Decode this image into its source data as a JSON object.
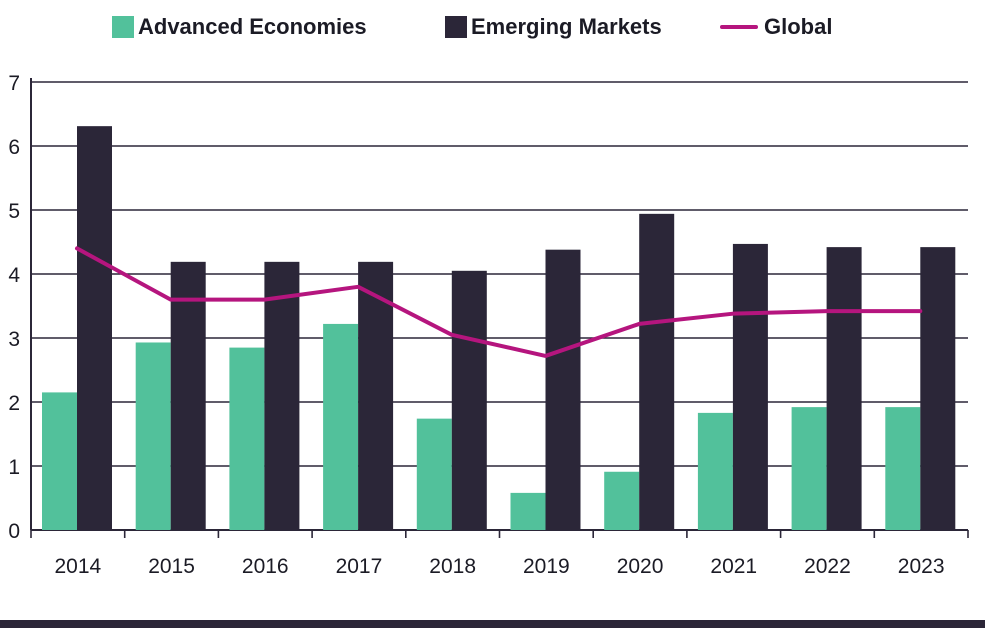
{
  "chart_data": {
    "type": "bar",
    "categories": [
      "2014",
      "2015",
      "2016",
      "2017",
      "2018",
      "2019",
      "2020",
      "2021",
      "2022",
      "2023"
    ],
    "series": [
      {
        "name": "Advanced Economies",
        "kind": "bar",
        "color": "#52c19b",
        "values": [
          2.15,
          2.93,
          2.85,
          3.22,
          1.74,
          0.58,
          0.91,
          1.83,
          1.92,
          1.92
        ]
      },
      {
        "name": "Emerging Markets",
        "kind": "bar",
        "color": "#2b2638",
        "values": [
          6.31,
          4.19,
          4.19,
          4.19,
          4.05,
          4.38,
          4.94,
          4.47,
          4.42,
          4.42
        ]
      },
      {
        "name": "Global",
        "kind": "line",
        "color": "#b5157e",
        "values": [
          4.4,
          3.6,
          3.6,
          3.8,
          3.05,
          2.72,
          3.22,
          3.38,
          3.42,
          3.42
        ]
      }
    ],
    "ylim": [
      0,
      7
    ],
    "yticks": [
      "0",
      "1",
      "2",
      "3",
      "4",
      "5",
      "6",
      "7"
    ],
    "grid": true,
    "legend_position": "top"
  },
  "colors": {
    "bottom_bar": "#2b2638",
    "grid": "#2b2638"
  }
}
